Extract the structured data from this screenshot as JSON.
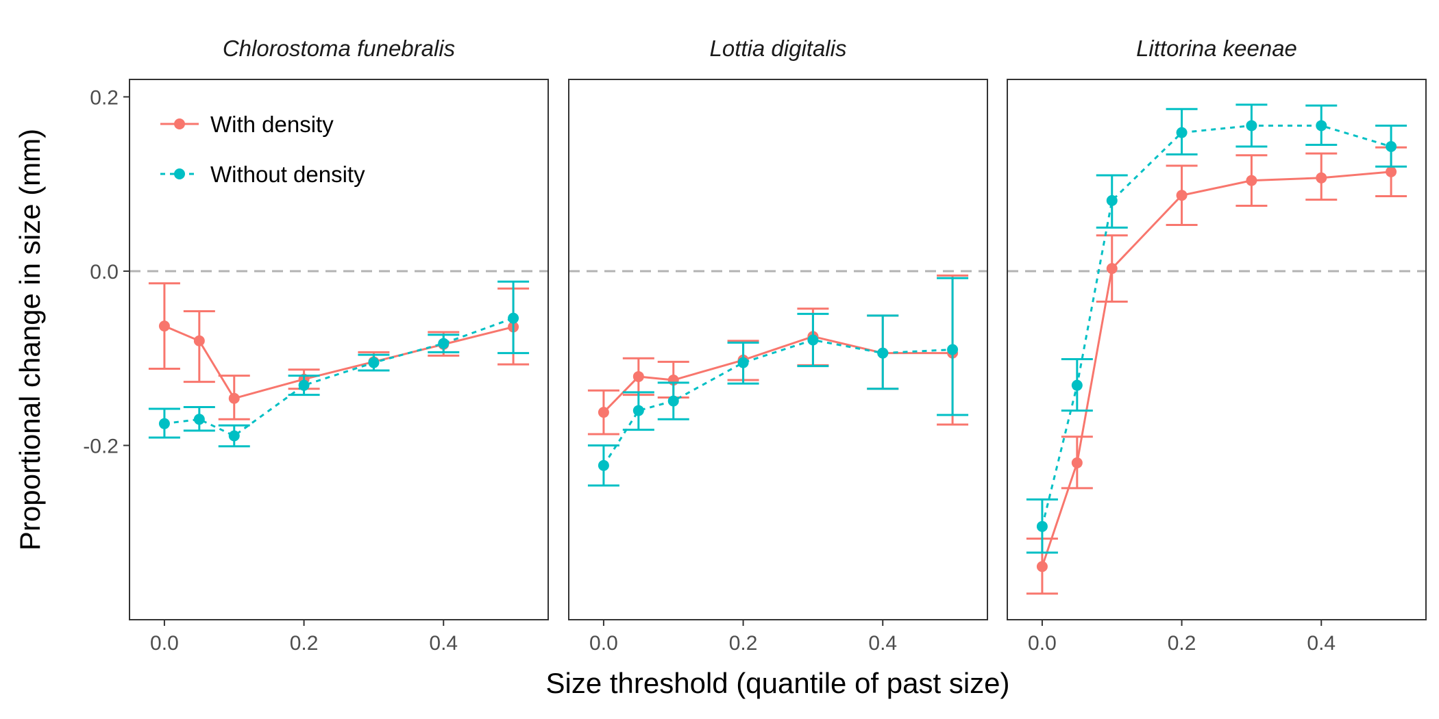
{
  "chart_data": {
    "type": "line",
    "xlabel": "Size threshold (quantile of past size)",
    "ylabel": "Proportional change in size (mm)",
    "xlim": [
      -0.05,
      0.55
    ],
    "ylim": [
      -0.4,
      0.22
    ],
    "x_ticks": [
      "0.0",
      "0.2",
      "0.4"
    ],
    "y_ticks": [
      "0.2",
      "0.0",
      "-0.2"
    ],
    "reference_line": 0,
    "grid": false,
    "legend_position": "top-left",
    "legend": [
      {
        "name": "With density",
        "color": "#F8766D",
        "style": "solid"
      },
      {
        "name": "Without density",
        "color": "#00BFC4",
        "style": "dotted"
      }
    ],
    "panels": [
      {
        "title": "Chlorostoma funebralis",
        "series": [
          {
            "name": "With density",
            "x": [
              0,
              0.05,
              0.1,
              0.2,
              0.3,
              0.4,
              0.5
            ],
            "y": [
              -0.063,
              -0.08,
              -0.146,
              -0.124,
              -0.104,
              -0.084,
              -0.064
            ],
            "lower": [
              -0.112,
              -0.127,
              -0.17,
              -0.135,
              -0.114,
              -0.097,
              -0.107
            ],
            "upper": [
              -0.014,
              -0.046,
              -0.12,
              -0.113,
              -0.093,
              -0.07,
              -0.02
            ]
          },
          {
            "name": "Without density",
            "x": [
              0,
              0.05,
              0.1,
              0.2,
              0.3,
              0.4,
              0.5
            ],
            "y": [
              -0.175,
              -0.17,
              -0.189,
              -0.131,
              -0.105,
              -0.083,
              -0.054
            ],
            "lower": [
              -0.191,
              -0.183,
              -0.201,
              -0.142,
              -0.114,
              -0.093,
              -0.094
            ],
            "upper": [
              -0.158,
              -0.156,
              -0.177,
              -0.12,
              -0.096,
              -0.073,
              -0.012
            ]
          }
        ]
      },
      {
        "title": "Lottia digitalis",
        "series": [
          {
            "name": "With density",
            "x": [
              0,
              0.05,
              0.1,
              0.2,
              0.3,
              0.4,
              0.5
            ],
            "y": [
              -0.162,
              -0.121,
              -0.125,
              -0.102,
              -0.075,
              -0.094,
              -0.094
            ],
            "lower": [
              -0.187,
              -0.142,
              -0.145,
              -0.125,
              -0.108,
              -0.135,
              -0.176
            ],
            "upper": [
              -0.137,
              -0.1,
              -0.104,
              -0.08,
              -0.043,
              -0.051,
              -0.005
            ]
          },
          {
            "name": "Without density",
            "x": [
              0,
              0.05,
              0.1,
              0.2,
              0.3,
              0.4,
              0.5
            ],
            "y": [
              -0.223,
              -0.16,
              -0.149,
              -0.105,
              -0.079,
              -0.094,
              -0.09
            ],
            "lower": [
              -0.246,
              -0.182,
              -0.17,
              -0.129,
              -0.109,
              -0.135,
              -0.165
            ],
            "upper": [
              -0.2,
              -0.139,
              -0.128,
              -0.082,
              -0.049,
              -0.051,
              -0.008
            ]
          }
        ]
      },
      {
        "title": "Littorina keenae",
        "series": [
          {
            "name": "With density",
            "x": [
              0,
              0.05,
              0.1,
              0.2,
              0.3,
              0.4,
              0.5
            ],
            "y": [
              -0.339,
              -0.22,
              0.003,
              0.087,
              0.104,
              0.107,
              0.114
            ],
            "lower": [
              -0.37,
              -0.249,
              -0.035,
              0.053,
              0.075,
              0.082,
              0.086
            ],
            "upper": [
              -0.307,
              -0.19,
              0.041,
              0.121,
              0.133,
              0.135,
              0.142
            ]
          },
          {
            "name": "Without density",
            "x": [
              0,
              0.05,
              0.1,
              0.2,
              0.3,
              0.4,
              0.5
            ],
            "y": [
              -0.293,
              -0.131,
              0.081,
              0.159,
              0.167,
              0.167,
              0.143
            ],
            "lower": [
              -0.323,
              -0.16,
              0.05,
              0.134,
              0.143,
              0.145,
              0.12
            ],
            "upper": [
              -0.262,
              -0.101,
              0.11,
              0.186,
              0.191,
              0.19,
              0.167
            ]
          }
        ]
      }
    ]
  }
}
